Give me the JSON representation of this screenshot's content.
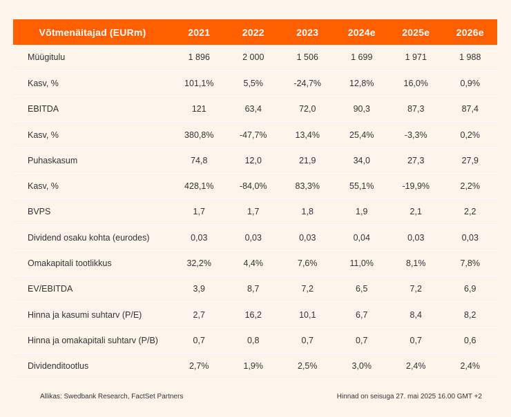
{
  "table": {
    "header": [
      "Võtmenäitajad (EURm)",
      "2021",
      "2022",
      "2023",
      "2024e",
      "2025e",
      "2026e"
    ],
    "rows": [
      [
        "Müügitulu",
        "1 896",
        "2 000",
        "1 506",
        "1 699",
        "1 971",
        "1 988"
      ],
      [
        "Kasv, %",
        "101,1%",
        "5,5%",
        "-24,7%",
        "12,8%",
        "16,0%",
        "0,9%"
      ],
      [
        "EBITDA",
        "121",
        "63,4",
        "72,0",
        "90,3",
        "87,3",
        "87,4"
      ],
      [
        "Kasv, %",
        "380,8%",
        "-47,7%",
        "13,4%",
        "25,4%",
        "-3,3%",
        "0,2%"
      ],
      [
        "Puhaskasum",
        "74,8",
        "12,0",
        "21,9",
        "34,0",
        "27,3",
        "27,9"
      ],
      [
        "Kasv, %",
        "428,1%",
        "-84,0%",
        "83,3%",
        "55,1%",
        "-19,9%",
        "2,2%"
      ],
      [
        "BVPS",
        "1,7",
        "1,7",
        "1,8",
        "1,9",
        "2,1",
        "2,2"
      ],
      [
        "Dividend osaku kohta (eurodes)",
        "0,03",
        "0,03",
        "0,03",
        "0,04",
        "0,03",
        "0,03"
      ],
      [
        "Omakapitali tootlikkus",
        "32,2%",
        "4,4%",
        "7,6%",
        "11,0%",
        "8,1%",
        "7,8%"
      ],
      [
        "EV/EBITDA",
        "3,9",
        "8,7",
        "7,2",
        "6,5",
        "7,2",
        "6,9"
      ],
      [
        "Hinna ja kasumi suhtarv (P/E)",
        "2,7",
        "16,2",
        "10,1",
        "6,7",
        "8,4",
        "8,2"
      ],
      [
        "Hinna ja omakapitali suhtarv (P/B)",
        "0,7",
        "0,8",
        "0,7",
        "0,7",
        "0,7",
        "0,6"
      ],
      [
        "Dividenditootlus",
        "2,7%",
        "1,9%",
        "2,5%",
        "3,0%",
        "2,4%",
        "2,4%"
      ]
    ]
  },
  "footer": {
    "source": "Allikas: Swedbank Research, FactSet Partners",
    "price_note": "Hinnad on seisuga 27. mai 2025 16.00 GMT +2"
  },
  "colors": {
    "header_bg": "#ff5f00",
    "body_bg": "#fdf4ec",
    "row_divider": "#ffffff"
  }
}
